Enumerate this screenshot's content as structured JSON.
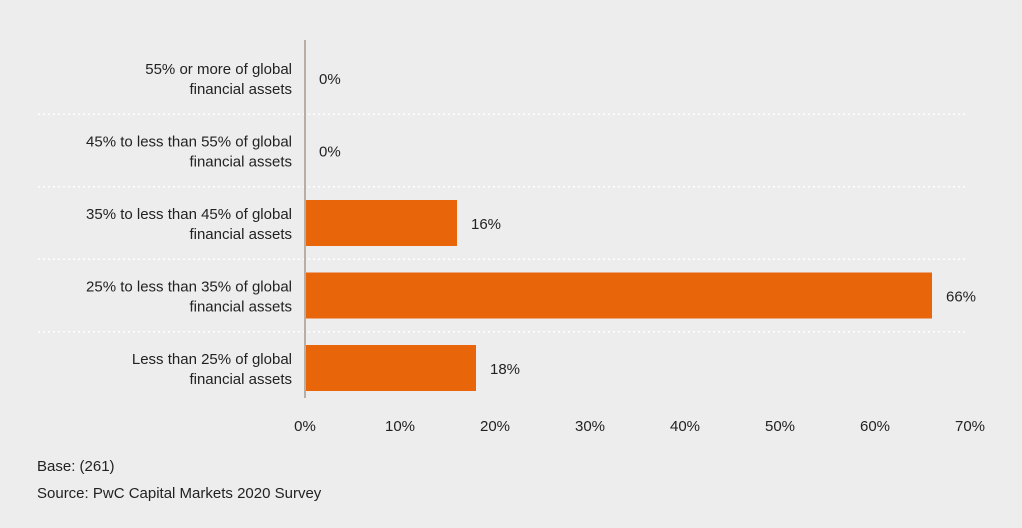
{
  "chart_data": {
    "type": "bar",
    "orientation": "horizontal",
    "categories": [
      [
        "55% or more of global",
        "financial assets"
      ],
      [
        "45% to less than 55% of global",
        "financial assets"
      ],
      [
        "35% to less than 45% of global",
        "financial assets"
      ],
      [
        "25% to less than 35% of global",
        "financial assets"
      ],
      [
        "Less than 25% of global",
        "financial assets"
      ]
    ],
    "values": [
      0,
      0,
      16,
      66,
      18
    ],
    "value_labels": [
      "0%",
      "0%",
      "16%",
      "66%",
      "18%"
    ],
    "xlim": [
      0,
      70
    ],
    "ticks": [
      0,
      10,
      20,
      30,
      40,
      50,
      60,
      70
    ],
    "tick_labels": [
      "0%",
      "10%",
      "20%",
      "30%",
      "40%",
      "50%",
      "60%",
      "70%"
    ],
    "bar_color": "#e8650a",
    "axis_color": "#b9aea6",
    "separator_color": "#ffffff",
    "grid": false
  },
  "footnotes": {
    "base": "Base: (261)",
    "source": "Source: PwC Capital Markets 2020 Survey"
  }
}
